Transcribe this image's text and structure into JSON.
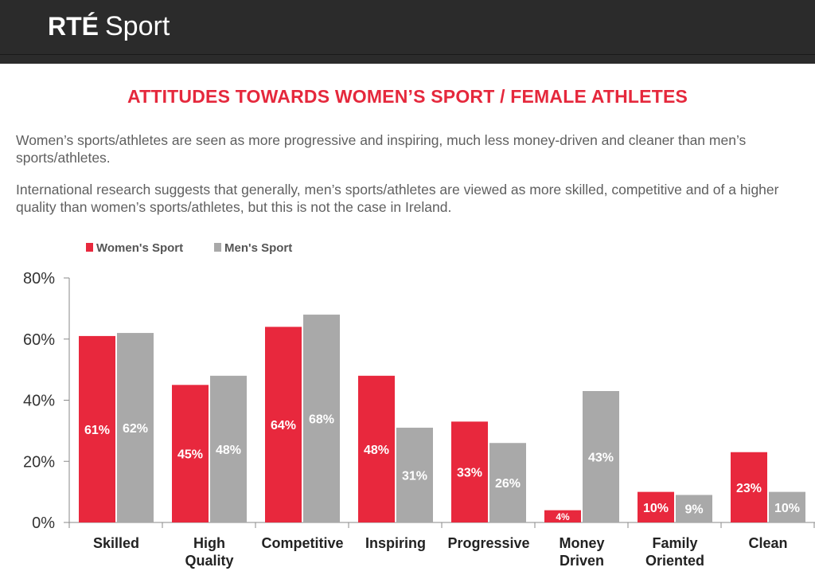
{
  "header": {
    "brand_rte": "RTÉ",
    "brand_sport": "Sport",
    "background": "#2b2b2b"
  },
  "title": "ATTITUDES TOWARDS WOMEN’S SPORT / FEMALE ATHLETES",
  "paragraphs": [
    "Women’s sports/athletes are seen as more progressive and inspiring, much less money-driven and cleaner than men’s sports/athletes.",
    "International research suggests that generally, men’s sports/athletes are viewed as more skilled, competitive and of a higher quality than women’s sports/athletes, but this is not the case in Ireland."
  ],
  "colors": {
    "accent": "#e5283c",
    "women": "#e8283d",
    "men": "#a9a9a9"
  },
  "chart_data": {
    "type": "bar",
    "categories": [
      [
        "Skilled"
      ],
      [
        "High",
        "Quality"
      ],
      [
        "Competitive"
      ],
      [
        "Inspiring"
      ],
      [
        "Progressive"
      ],
      [
        "Money",
        "Driven"
      ],
      [
        "Family",
        "Oriented"
      ],
      [
        "Clean"
      ]
    ],
    "series": [
      {
        "name": "Women's Sport",
        "values": [
          61,
          45,
          64,
          48,
          33,
          4,
          10,
          23
        ],
        "labels": [
          "61%",
          "45%",
          "64%",
          "48%",
          "33%",
          "4%",
          "10%",
          "23%"
        ]
      },
      {
        "name": "Men's Sport",
        "values": [
          62,
          48,
          68,
          31,
          26,
          43,
          9,
          10
        ],
        "labels": [
          "62%",
          "48%",
          "68%",
          "31%",
          "26%",
          "43%",
          "9%",
          "10%"
        ]
      }
    ],
    "yticks": [
      "0%",
      "20%",
      "40%",
      "60%",
      "80%"
    ],
    "ytick_values": [
      0,
      20,
      40,
      60,
      80
    ],
    "ylim": [
      0,
      80
    ],
    "legend": "top-left",
    "grid": false
  }
}
